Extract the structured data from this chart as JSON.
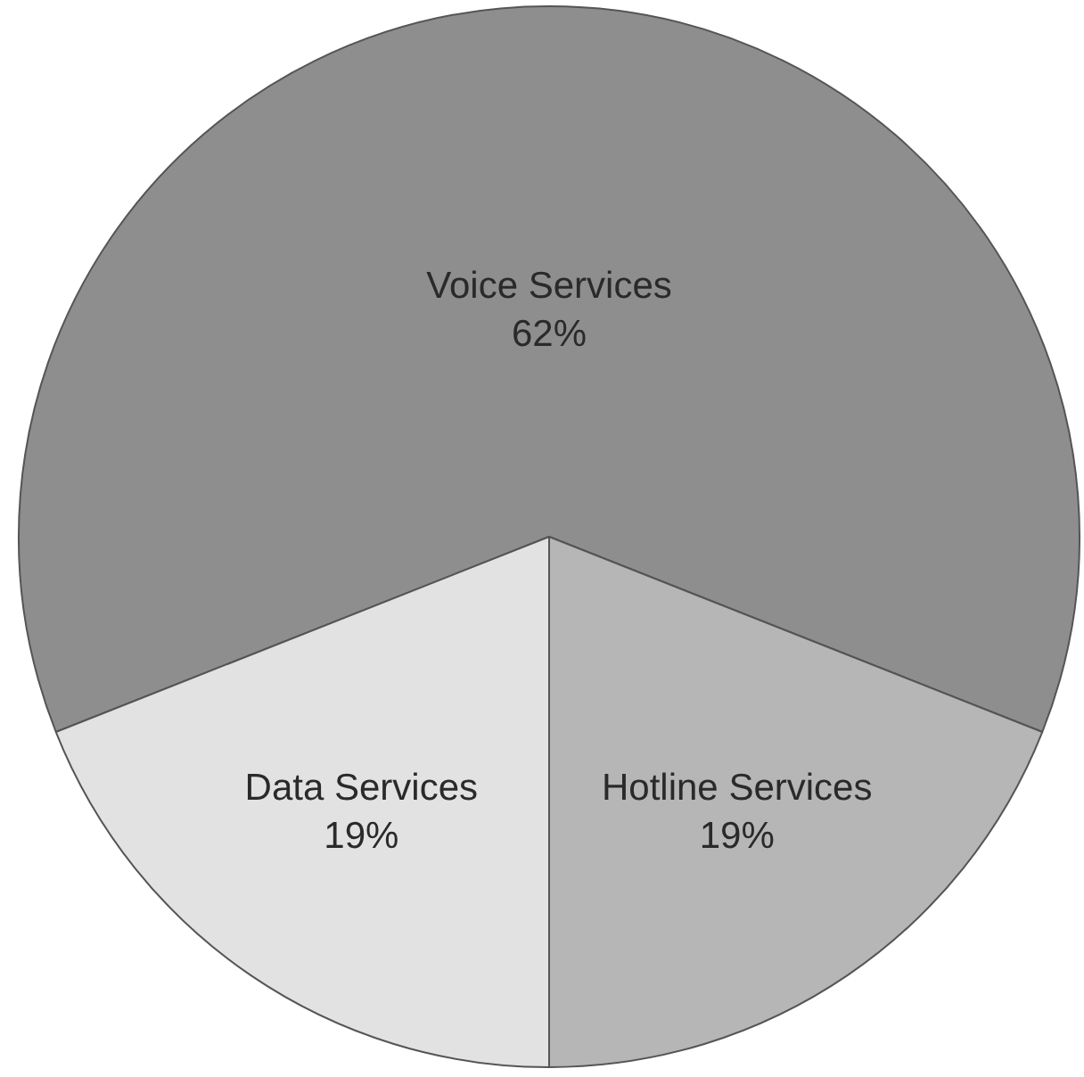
{
  "chart_data": {
    "type": "pie",
    "categories": [
      "Voice Services",
      "Hotline Services",
      "Data Services"
    ],
    "values": [
      62,
      19,
      19
    ],
    "value_labels": [
      "62%",
      "19%",
      "19%"
    ],
    "colors": [
      "#8e8e8e",
      "#b6b6b6",
      "#e2e2e2"
    ]
  }
}
